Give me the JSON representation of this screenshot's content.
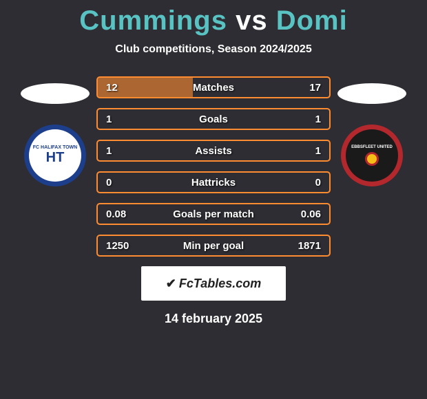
{
  "title": {
    "player1": "Cummings",
    "vs": "vs",
    "player2": "Domi",
    "color1": "#59c3c3",
    "color_vs": "#ffffff",
    "color2": "#59c3c3"
  },
  "subtitle": "Club competitions, Season 2024/2025",
  "crest_left": {
    "outer_bg": "#1d3e8a",
    "inner_bg": "#ffffff",
    "label": "FC HALIFAX TOWN",
    "sub": "HT",
    "text_color": "#1d3e8a"
  },
  "crest_right": {
    "outer_bg": "#b3282d",
    "inner_bg": "#1a1a1a",
    "label": "EBBSFLEET UNITED",
    "accent": "#f6bd16"
  },
  "bars": [
    {
      "label": "Matches",
      "left": "12",
      "right": "17",
      "fill_left_pct": 41,
      "fill_right_pct": 0
    },
    {
      "label": "Goals",
      "left": "1",
      "right": "1",
      "fill_left_pct": 0,
      "fill_right_pct": 0
    },
    {
      "label": "Assists",
      "left": "1",
      "right": "1",
      "fill_left_pct": 0,
      "fill_right_pct": 0
    },
    {
      "label": "Hattricks",
      "left": "0",
      "right": "0",
      "fill_left_pct": 0,
      "fill_right_pct": 0
    },
    {
      "label": "Goals per match",
      "left": "0.08",
      "right": "0.06",
      "fill_left_pct": 0,
      "fill_right_pct": 0
    },
    {
      "label": "Min per goal",
      "left": "1250",
      "right": "1871",
      "fill_left_pct": 0,
      "fill_right_pct": 0
    }
  ],
  "brand": {
    "icon": "✔",
    "text": "FcTables.com"
  },
  "date": "14 february 2025",
  "colors": {
    "bar_border": "#ff8c30",
    "bar_fill": "rgba(255,140,48,0.6)",
    "bg": "#2d2d33"
  }
}
